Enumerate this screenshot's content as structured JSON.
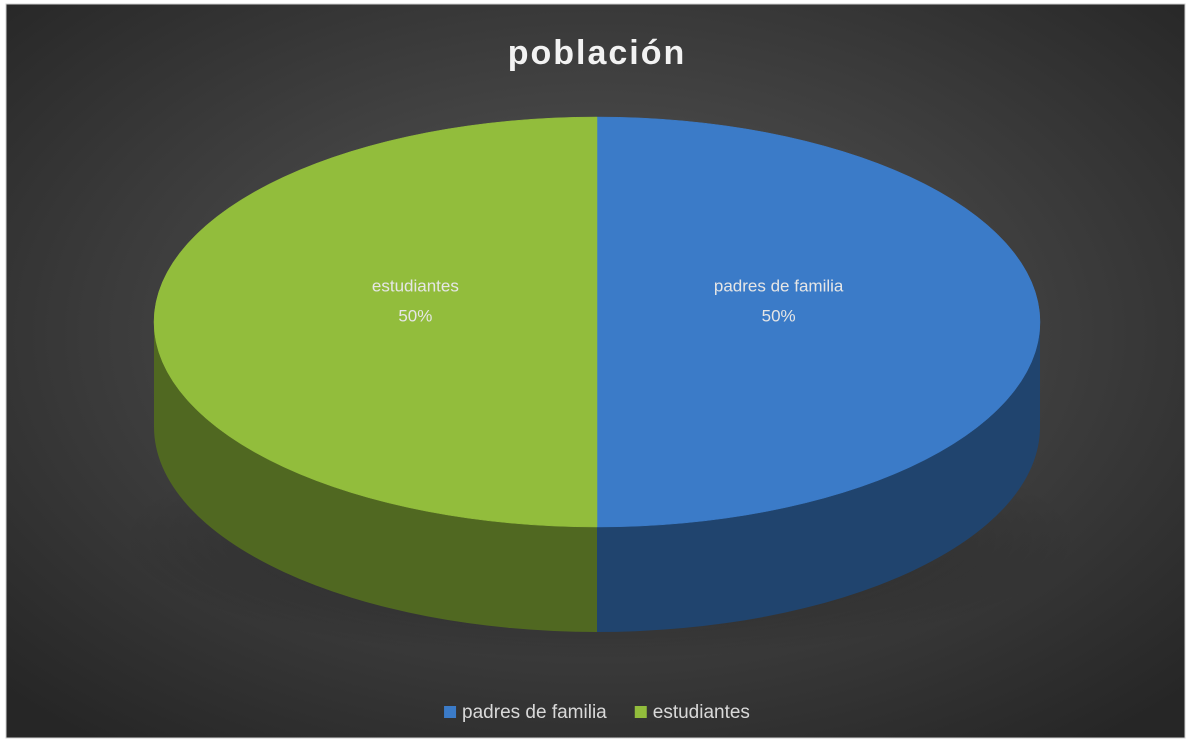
{
  "chart_data": {
    "type": "pie",
    "title": "población",
    "categories": [
      "padres de familia",
      "estudiantes"
    ],
    "values": [
      50,
      50
    ],
    "value_labels": [
      "50%",
      "50%"
    ],
    "colors": [
      "#3b7bc8",
      "#92bd3c"
    ],
    "legend": "bottom"
  }
}
